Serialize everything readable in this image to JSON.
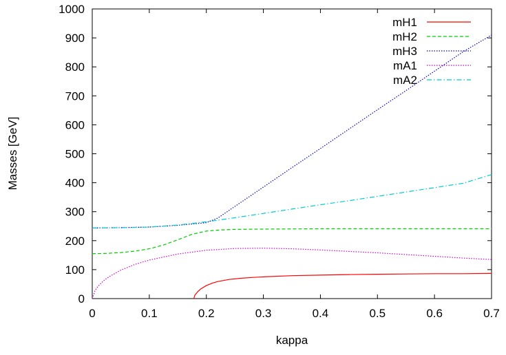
{
  "chart_data": {
    "type": "line",
    "title": "",
    "xlabel": "kappa",
    "ylabel": "Masses [GeV]",
    "xlim": [
      0,
      0.7
    ],
    "ylim": [
      0,
      1000
    ],
    "xticks": [
      "0",
      "0.1",
      "0.2",
      "0.3",
      "0.4",
      "0.5",
      "0.6",
      "0.7"
    ],
    "yticks": [
      "0",
      "100",
      "200",
      "300",
      "400",
      "500",
      "600",
      "700",
      "800",
      "900",
      "1000"
    ],
    "grid": false,
    "legend_position": "top-right",
    "series": [
      {
        "name": "mH1",
        "color": "#ff0000",
        "dash": "solid",
        "x": [
          0.178,
          0.18,
          0.185,
          0.19,
          0.2,
          0.21,
          0.22,
          0.24,
          0.26,
          0.28,
          0.3,
          0.35,
          0.4,
          0.45,
          0.5,
          0.55,
          0.6,
          0.65,
          0.7
        ],
        "y": [
          0,
          12,
          24,
          33,
          45,
          53,
          59,
          66,
          70,
          73,
          75,
          79,
          81,
          83,
          84,
          85,
          86,
          86,
          87
        ]
      },
      {
        "name": "mH2",
        "color": "#00cc00",
        "dash": "dashed",
        "x": [
          0,
          0.025,
          0.05,
          0.075,
          0.1,
          0.125,
          0.15,
          0.175,
          0.2,
          0.225,
          0.25,
          0.3,
          0.4,
          0.5,
          0.6,
          0.7
        ],
        "y": [
          155,
          156,
          159,
          164,
          172,
          185,
          203,
          222,
          233,
          237,
          239,
          240,
          241,
          241,
          241,
          241
        ]
      },
      {
        "name": "mH3",
        "color": "#0000cc",
        "dash": "dotted",
        "x": [
          0,
          0.05,
          0.1,
          0.15,
          0.2,
          0.22,
          0.25,
          0.3,
          0.35,
          0.4,
          0.45,
          0.5,
          0.55,
          0.6,
          0.65,
          0.7
        ],
        "y": [
          244,
          245,
          247,
          253,
          262,
          278,
          318,
          385,
          452,
          518,
          585,
          652,
          718,
          785,
          852,
          910
        ]
      },
      {
        "name": "mA1",
        "color": "#cc00cc",
        "dash": "dotted",
        "x": [
          0,
          0.005,
          0.01,
          0.02,
          0.03,
          0.05,
          0.075,
          0.1,
          0.15,
          0.2,
          0.25,
          0.3,
          0.35,
          0.4,
          0.45,
          0.5,
          0.55,
          0.6,
          0.65,
          0.7
        ],
        "y": [
          0,
          28,
          42,
          62,
          76,
          98,
          118,
          133,
          154,
          167,
          173,
          174,
          172,
          168,
          163,
          158,
          152,
          146,
          140,
          135
        ]
      },
      {
        "name": "mA2",
        "color": "#00cccc",
        "dash": "dashdot",
        "x": [
          0,
          0.05,
          0.1,
          0.15,
          0.2,
          0.25,
          0.3,
          0.35,
          0.4,
          0.45,
          0.5,
          0.55,
          0.6,
          0.65,
          0.7
        ],
        "y": [
          244,
          245,
          247,
          254,
          265,
          279,
          294,
          309,
          324,
          338,
          353,
          368,
          383,
          398,
          428
        ]
      }
    ]
  }
}
